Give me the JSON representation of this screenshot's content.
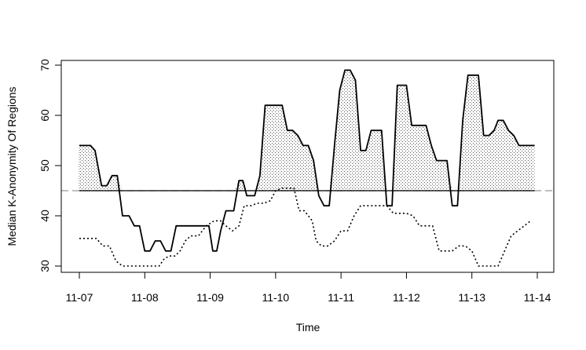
{
  "chart_data": {
    "type": "line",
    "title": "",
    "xlabel": "Time",
    "ylabel": "Median K-Anonymity Of Regions",
    "xlim": [
      0,
      7.05
    ],
    "ylim": [
      29,
      70.8
    ],
    "x_ticks": [
      {
        "value": 0,
        "label": "11-07"
      },
      {
        "value": 1,
        "label": "11-08"
      },
      {
        "value": 2,
        "label": "11-09"
      },
      {
        "value": 3,
        "label": "11-10"
      },
      {
        "value": 4,
        "label": "11-11"
      },
      {
        "value": 5,
        "label": "11-12"
      },
      {
        "value": 6,
        "label": "11-13"
      },
      {
        "value": 7,
        "label": "11-14"
      }
    ],
    "y_ticks": [
      30,
      40,
      50,
      60,
      70
    ],
    "reference_lines": [
      {
        "value": 45,
        "style": "dashed",
        "color": "#999999"
      },
      {
        "value": 45,
        "style": "solid",
        "color": "#000000"
      }
    ],
    "shading": "dotted fill where solid series exceeds 45",
    "series": [
      {
        "style": "solid",
        "x": [
          0,
          0.17,
          0.24,
          0.34,
          0.42,
          0.5,
          0.58,
          0.66,
          0.76,
          0.84,
          0.92,
          1.0,
          1.08,
          1.16,
          1.24,
          1.32,
          1.4,
          1.48,
          1.6,
          1.7,
          1.8,
          1.9,
          1.98,
          2.04,
          2.1,
          2.16,
          2.24,
          2.3,
          2.36,
          2.44,
          2.5,
          2.56,
          2.62,
          2.68,
          2.76,
          2.84,
          2.92,
          3.0,
          3.1,
          3.18,
          3.26,
          3.34,
          3.42,
          3.5,
          3.58,
          3.66,
          3.74,
          3.82,
          3.9,
          3.98,
          4.06,
          4.14,
          4.22,
          4.3,
          4.38,
          4.46,
          4.54,
          4.62,
          4.7,
          4.78,
          4.86,
          4.94,
          5.0,
          5.08,
          5.16,
          5.24,
          5.3,
          5.38,
          5.46,
          5.54,
          5.62,
          5.7,
          5.78,
          5.86,
          5.94,
          6.02,
          6.1,
          6.18,
          6.26,
          6.34,
          6.4,
          6.48,
          6.56,
          6.64,
          6.72,
          6.8,
          6.88,
          6.96
        ],
        "y": [
          54,
          54,
          53,
          46,
          46,
          48,
          48,
          40,
          40,
          38,
          38,
          33,
          33,
          35,
          35,
          33,
          33,
          38,
          38,
          38,
          38,
          38,
          38,
          33,
          33,
          37,
          41,
          41,
          41,
          47,
          47,
          44,
          44,
          44,
          48,
          62,
          62,
          62,
          62,
          57,
          57,
          56,
          54,
          54,
          51,
          44,
          42,
          42,
          54,
          65,
          69,
          69,
          67,
          53,
          53,
          57,
          57,
          57,
          42,
          42,
          66,
          66,
          66,
          58,
          58,
          58,
          58,
          54,
          51,
          51,
          51,
          42,
          42,
          59,
          68,
          68,
          68,
          56,
          56,
          57,
          59,
          59,
          57,
          56,
          54,
          54,
          54,
          54
        ]
      },
      {
        "style": "dotted",
        "x": [
          0,
          0.2,
          0.26,
          0.36,
          0.46,
          0.56,
          0.66,
          0.78,
          0.9,
          1.0,
          1.1,
          1.22,
          1.3,
          1.38,
          1.46,
          1.54,
          1.62,
          1.7,
          1.82,
          1.94,
          2.06,
          2.16,
          2.24,
          2.34,
          2.44,
          2.52,
          2.62,
          2.72,
          2.82,
          2.92,
          3.0,
          3.1,
          3.2,
          3.28,
          3.36,
          3.44,
          3.5,
          3.56,
          3.62,
          3.7,
          3.8,
          3.9,
          4.0,
          4.1,
          4.2,
          4.3,
          4.4,
          4.5,
          4.6,
          4.7,
          4.8,
          4.9,
          5.0,
          5.1,
          5.2,
          5.3,
          5.4,
          5.5,
          5.6,
          5.7,
          5.8,
          5.9,
          6.0,
          6.1,
          6.2,
          6.3,
          6.4,
          6.5,
          6.6,
          6.7,
          6.8,
          6.9
        ],
        "y": [
          35.5,
          35.5,
          35.5,
          34,
          34,
          31,
          30,
          30,
          30,
          30,
          30,
          30,
          31.5,
          32,
          32,
          33,
          35,
          36,
          36,
          38,
          39,
          39,
          38,
          37,
          38,
          42,
          42,
          42.5,
          42.5,
          43,
          45,
          45.5,
          45.5,
          45.5,
          41,
          41,
          40,
          39,
          35,
          34,
          34,
          35,
          37,
          37,
          40,
          42,
          42,
          42,
          42,
          42,
          40.5,
          40.5,
          40.5,
          40,
          38,
          38,
          38,
          33,
          33,
          33,
          34,
          34,
          33,
          30,
          30,
          30,
          30,
          33,
          36,
          37,
          38,
          39
        ]
      }
    ]
  }
}
